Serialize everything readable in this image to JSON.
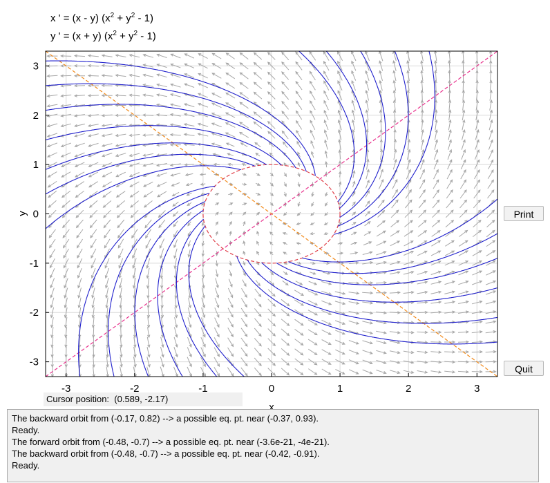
{
  "equations": {
    "x_lhs": "x ' = (x - y) (x",
    "x_exp": "2",
    "x_mid": " + y",
    "x_exp2": "2",
    "x_end": " - 1)",
    "y_lhs": "y ' = (x + y) (x",
    "y_exp": "2",
    "y_mid": " + y",
    "y_exp2": "2",
    "y_end": " - 1)"
  },
  "buttons": {
    "print": "Print",
    "quit": "Quit"
  },
  "cursor": {
    "label": "Cursor position:",
    "value": "(0.589, -2.17)"
  },
  "log": [
    "The backward orbit from (-0.17, 0.82) --> a possible eq. pt. near (-0.37, 0.93).",
    "Ready.",
    "The forward orbit from (-0.48, -0.7) --> a possible eq. pt. near (-3.6e-21, -4e-21).",
    "The backward orbit from (-0.48, -0.7) --> a possible eq. pt. near (-0.42, -0.91).",
    "Ready."
  ],
  "chart_data": {
    "type": "scatter",
    "xlabel": "x",
    "ylabel": "y",
    "xlim": [
      -3.3,
      3.3
    ],
    "ylim": [
      -3.3,
      3.3
    ],
    "xticks": [
      "-3",
      "-2",
      "-1",
      "0",
      "1",
      "2",
      "3"
    ],
    "yticks": [
      "-3",
      "-2",
      "-1",
      "0",
      "1",
      "2",
      "3"
    ],
    "grid": true,
    "x_nullcline_lines": [
      "y = x",
      "x^2 + y^2 = 1"
    ],
    "y_nullcline_lines": [
      "y = -x"
    ],
    "orbit_starts": [
      [
        0.4,
        3.3
      ],
      [
        0.8,
        3.3
      ],
      [
        1.3,
        3.3
      ],
      [
        1.8,
        3.3
      ],
      [
        2.3,
        3.3
      ],
      [
        -0.4,
        -3.3
      ],
      [
        -0.8,
        -3.3
      ],
      [
        -1.3,
        -3.3
      ],
      [
        -1.8,
        -3.3
      ],
      [
        -2.3,
        -3.3
      ],
      [
        -2.8,
        -3.3
      ],
      [
        3.3,
        -0.4
      ],
      [
        3.3,
        -0.9
      ],
      [
        3.3,
        -1.5
      ],
      [
        3.3,
        -2.1
      ],
      [
        3.3,
        -2.6
      ],
      [
        3.3,
        0.3
      ],
      [
        -3.3,
        0.4
      ],
      [
        -3.3,
        0.9
      ],
      [
        -3.3,
        1.5
      ],
      [
        -3.3,
        2.1
      ],
      [
        -3.3,
        2.6
      ],
      [
        -3.3,
        -0.3
      ],
      [
        -3.3,
        3.1
      ]
    ],
    "colors": {
      "orbit": "#1f1fcc",
      "field": "#a6a6a6",
      "nullcline_x": "#e8308c",
      "nullcline_y": "#f28a1a",
      "grid": "#d9d9d9"
    }
  }
}
